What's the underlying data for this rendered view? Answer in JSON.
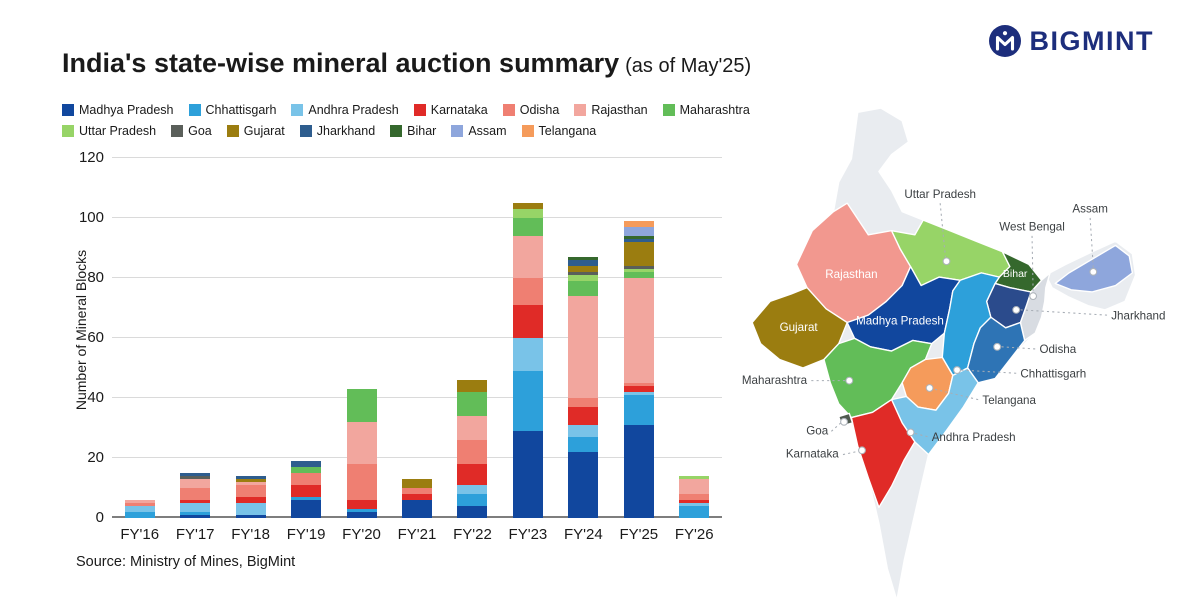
{
  "header": {
    "title": "India's state-wise mineral auction summary",
    "subtitle": "(as of May'25)",
    "brand": "BIGMINT"
  },
  "source": "Source: Ministry of Mines, BigMint",
  "chart_data": {
    "type": "stacked-bar",
    "title": "India's state-wise mineral auction summary (as of May'25)",
    "ylabel": "Number of Mineral Blocks",
    "xlabel": "",
    "ylim": [
      0,
      120
    ],
    "yticks": [
      0,
      20,
      40,
      60,
      80,
      100,
      120
    ],
    "grid": true,
    "legend_position": "top",
    "categories": [
      "FY'16",
      "FY'17",
      "FY'18",
      "FY'19",
      "FY'20",
      "FY'21",
      "FY'22",
      "FY'23",
      "FY'24",
      "FY'25",
      "FY'26"
    ],
    "totals": [
      6,
      15,
      14,
      19,
      43,
      13,
      46,
      105,
      87,
      99,
      14
    ],
    "series": [
      {
        "name": "Madhya Pradesh",
        "color": "#11479e",
        "values": [
          0,
          1,
          1,
          6,
          2,
          6,
          4,
          29,
          22,
          31,
          0
        ]
      },
      {
        "name": "Chhattisgarh",
        "color": "#2da0da",
        "values": [
          2,
          1,
          0,
          1,
          1,
          0,
          4,
          20,
          5,
          10,
          4
        ]
      },
      {
        "name": "Andhra Pradesh",
        "color": "#79c3e8",
        "values": [
          2,
          3,
          4,
          0,
          0,
          0,
          3,
          11,
          4,
          1,
          1
        ]
      },
      {
        "name": "Karnataka",
        "color": "#e02b27",
        "values": [
          0,
          1,
          2,
          4,
          3,
          2,
          7,
          11,
          6,
          2,
          1
        ]
      },
      {
        "name": "Odisha",
        "color": "#ef7f72",
        "values": [
          1,
          4,
          4,
          4,
          12,
          2,
          8,
          9,
          3,
          1,
          2
        ]
      },
      {
        "name": "Rajasthan",
        "color": "#f2a69e",
        "values": [
          1,
          3,
          1,
          0,
          14,
          0,
          8,
          14,
          34,
          35,
          5
        ]
      },
      {
        "name": "Maharashtra",
        "color": "#62bd58",
        "values": [
          0,
          0,
          0,
          2,
          11,
          0,
          8,
          6,
          5,
          2,
          0
        ]
      },
      {
        "name": "Uttar Pradesh",
        "color": "#97d467",
        "values": [
          0,
          0,
          0,
          0,
          0,
          0,
          0,
          3,
          2,
          1,
          1
        ]
      },
      {
        "name": "Goa",
        "color": "#5a5f5a",
        "values": [
          0,
          1,
          0,
          0,
          0,
          0,
          0,
          0,
          1,
          1,
          0
        ]
      },
      {
        "name": "Gujarat",
        "color": "#9b7d10",
        "values": [
          0,
          0,
          1,
          0,
          0,
          3,
          4,
          2,
          2,
          8,
          0
        ]
      },
      {
        "name": "Jharkhand",
        "color": "#2e5d8e",
        "values": [
          0,
          1,
          1,
          2,
          0,
          0,
          0,
          0,
          2,
          1,
          0
        ]
      },
      {
        "name": "Bihar",
        "color": "#35682d",
        "values": [
          0,
          0,
          0,
          0,
          0,
          0,
          0,
          0,
          1,
          1,
          0
        ]
      },
      {
        "name": "Assam",
        "color": "#8ea6dc",
        "values": [
          0,
          0,
          0,
          0,
          0,
          0,
          0,
          0,
          0,
          3,
          0
        ]
      },
      {
        "name": "Telangana",
        "color": "#f59b5b",
        "values": [
          0,
          0,
          0,
          0,
          0,
          0,
          0,
          0,
          0,
          2,
          0
        ]
      }
    ]
  },
  "map": {
    "states": {
      "rajasthan": {
        "label": "Rajasthan",
        "color": "#f2988f"
      },
      "gujarat": {
        "label": "Gujarat",
        "color": "#9b7d10"
      },
      "madhya_pradesh": {
        "label": "Madhya Pradesh",
        "color": "#11479e"
      },
      "uttar_pradesh": {
        "label": "Uttar Pradesh",
        "color": "#97d467"
      },
      "bihar": {
        "label": "Bihar",
        "color": "#35682d"
      },
      "west_bengal": {
        "label": "West Bengal",
        "color": "#d8dce2"
      },
      "assam": {
        "label": "Assam",
        "color": "#8ea6dc"
      },
      "jharkhand": {
        "label": "Jharkhand",
        "color": "#2b4b8c"
      },
      "odisha": {
        "label": "Odisha",
        "color": "#2e74b5"
      },
      "chhattisgarh": {
        "label": "Chhattisgarh",
        "color": "#2da0da"
      },
      "telangana": {
        "label": "Telangana",
        "color": "#f59b5b"
      },
      "maharashtra": {
        "label": "Maharashtra",
        "color": "#62bd58"
      },
      "goa": {
        "label": "Goa",
        "color": "#4f5a4f"
      },
      "karnataka": {
        "label": "Karnataka",
        "color": "#e02b27"
      },
      "andhra_pradesh": {
        "label": "Andhra Pradesh",
        "color": "#79c3e8"
      }
    }
  }
}
